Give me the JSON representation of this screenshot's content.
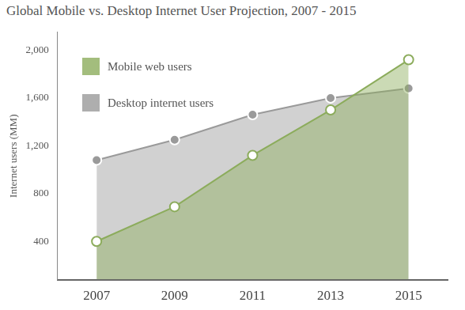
{
  "chart_data": {
    "type": "area",
    "title": "Global Mobile vs. Desktop Internet User Projection, 2007 - 2015",
    "x": [
      2007,
      2009,
      2011,
      2013,
      2015
    ],
    "series": [
      {
        "name": "Mobile web users",
        "color": "#8cac5c",
        "values": [
          400,
          690,
          1120,
          1500,
          1920
        ],
        "marker": "open_circle"
      },
      {
        "name": "Desktop internet users",
        "color": "#9a9a9a",
        "values": [
          1080,
          1250,
          1460,
          1600,
          1680
        ],
        "marker": "circle"
      }
    ],
    "y_label": "Internet users (MM)",
    "xlim": [
      2006,
      2016
    ],
    "xticks": [
      2007,
      2009,
      2011,
      2013,
      2015
    ],
    "ylim": [
      80,
      2150
    ],
    "yticks": [
      400,
      800,
      {
        "value": 1200,
        "label": "1,200"
      },
      {
        "value": 1600,
        "label": "1,600"
      },
      {
        "value": 2000,
        "label": "2,000"
      }
    ],
    "grid": false,
    "legend": "upper left"
  }
}
